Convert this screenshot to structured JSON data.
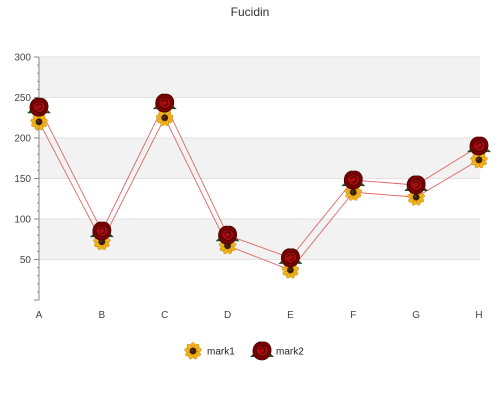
{
  "chart_data": {
    "type": "line",
    "title": "Fucidin",
    "xlabel": "",
    "ylabel": "",
    "categories": [
      "A",
      "B",
      "C",
      "D",
      "E",
      "F",
      "G",
      "H"
    ],
    "ylim": [
      0,
      300
    ],
    "yticks": [
      50,
      100,
      150,
      200,
      250,
      300
    ],
    "grid": true,
    "legend": "bottom",
    "series": [
      {
        "name": "mark1",
        "values": [
          220,
          72,
          225,
          67,
          37,
          133,
          127,
          173
        ],
        "color": "#e8a317",
        "marker": "sunflower-icon"
      },
      {
        "name": "mark2",
        "values": [
          238,
          85,
          243,
          80,
          52,
          148,
          142,
          190
        ],
        "color": "#8b0000",
        "marker": "rose-icon"
      }
    ],
    "line_color": "#e06666"
  }
}
